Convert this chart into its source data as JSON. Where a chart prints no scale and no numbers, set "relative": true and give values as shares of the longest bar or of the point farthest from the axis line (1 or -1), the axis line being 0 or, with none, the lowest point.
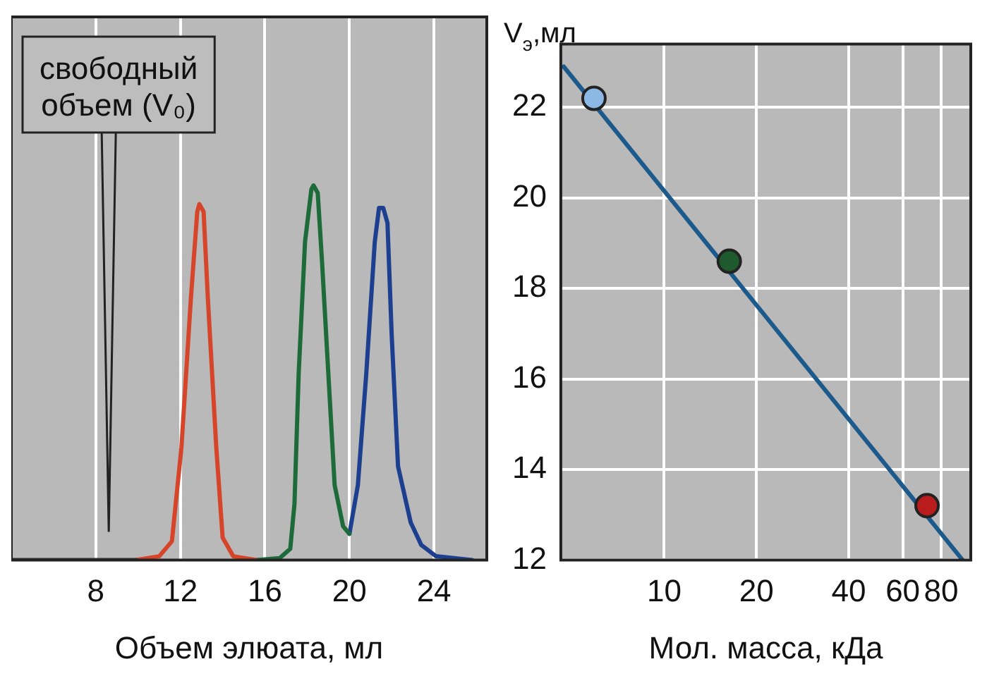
{
  "chart_data": [
    {
      "type": "line",
      "relative": true,
      "xlabel": "Объем элюата, мл",
      "xlim": [
        4,
        26.5
      ],
      "xticks": [
        8,
        12,
        16,
        20,
        24
      ],
      "tick_labels": "x",
      "grid": "x",
      "annotations": [
        "свободный объем (V₀)"
      ],
      "series": [
        {
          "color": "#3a3a3a",
          "x": [
            4,
            9.9
          ],
          "values": [
            0,
            0
          ]
        },
        {
          "color": "#d6452a",
          "x": [
            9.9,
            11.0,
            11.6,
            12.05,
            12.5,
            12.8,
            12.9,
            13.1,
            13.3,
            13.7,
            14.0,
            14.5,
            15.6
          ],
          "values": [
            0,
            0.01,
            0.05,
            0.3,
            0.7,
            0.93,
            0.95,
            0.93,
            0.7,
            0.3,
            0.06,
            0.01,
            0
          ]
        },
        {
          "color": "#1e6b3a",
          "x": [
            15.6,
            16.7,
            17.2,
            17.4,
            17.6,
            17.9,
            18.2,
            18.3,
            18.5,
            18.7,
            19.0,
            19.3,
            19.7,
            20.0
          ],
          "values": [
            0,
            0.005,
            0.03,
            0.15,
            0.5,
            0.85,
            0.99,
            1.0,
            0.98,
            0.8,
            0.5,
            0.2,
            0.09,
            0.07
          ]
        },
        {
          "color": "#1d3f8f",
          "x": [
            20.0,
            20.4,
            20.8,
            21.2,
            21.4,
            21.6,
            21.8,
            22.0,
            22.3,
            22.9,
            23.4,
            24.1,
            25.8
          ],
          "values": [
            0.07,
            0.2,
            0.5,
            0.85,
            0.94,
            0.94,
            0.9,
            0.6,
            0.25,
            0.1,
            0.04,
            0.01,
            0
          ]
        }
      ]
    },
    {
      "type": "scatter",
      "xlabel": "Мол. масса, кДа",
      "ylabel": "V$_{э}$,мл",
      "log": "x",
      "xlim": [
        4.6,
        100
      ],
      "xticks": [
        10,
        20,
        40,
        60,
        80
      ],
      "ylim": [
        12,
        23.4
      ],
      "yticks": [
        12,
        14,
        16,
        18,
        20,
        22
      ],
      "grid": true,
      "series": [
        {
          "type": "line",
          "color": "#1d5a8c",
          "x": [
            4.7,
            94
          ],
          "values": [
            22.9,
            12.0
          ]
        },
        {
          "colors": [
            "#8cb8e6",
            "#1f5a2e",
            "#b81c1c"
          ],
          "x": [
            5.9,
            16.3,
            72
          ],
          "values": [
            22.2,
            18.6,
            13.2
          ]
        }
      ]
    }
  ]
}
